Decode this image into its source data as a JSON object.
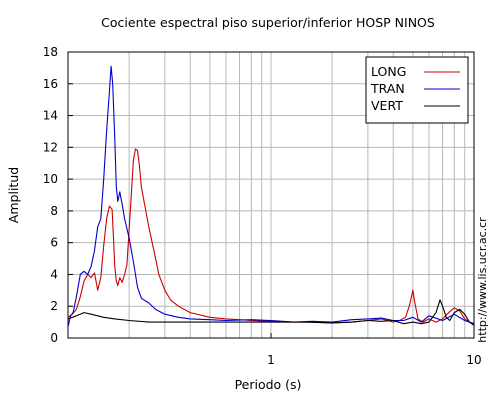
{
  "chart_data": {
    "type": "line",
    "title": "Cociente espectral piso superior/inferior  HOSP NINOS",
    "xlabel": "Periodo (s)",
    "ylabel": "Amplitud",
    "watermark": "http://www.lis.ucr.ac.cr",
    "x_scale": "log",
    "xlim": [
      0.1,
      10
    ],
    "ylim": [
      0,
      18
    ],
    "xticks": [
      1,
      10
    ],
    "yticks": [
      0,
      2,
      4,
      6,
      8,
      10,
      12,
      14,
      16,
      18
    ],
    "grid": true,
    "legend_position": "top-right",
    "series": [
      {
        "name": "LONG",
        "color": "#cc0000",
        "x": [
          0.1,
          0.105,
          0.11,
          0.115,
          0.12,
          0.125,
          0.13,
          0.135,
          0.14,
          0.145,
          0.15,
          0.155,
          0.16,
          0.165,
          0.168,
          0.17,
          0.173,
          0.176,
          0.18,
          0.185,
          0.19,
          0.195,
          0.2,
          0.205,
          0.21,
          0.215,
          0.22,
          0.225,
          0.23,
          0.24,
          0.25,
          0.26,
          0.27,
          0.28,
          0.3,
          0.32,
          0.35,
          0.4,
          0.5,
          0.6,
          0.7,
          0.8,
          1.0,
          1.2,
          1.5,
          2.0,
          2.5,
          3.0,
          3.5,
          4.0,
          4.3,
          4.6,
          4.8,
          5.0,
          5.1,
          5.3,
          5.6,
          6.0,
          6.5,
          7.0,
          7.5,
          8.0,
          8.5,
          9.0,
          9.5,
          10.0
        ],
        "y": [
          1.3,
          1.5,
          1.8,
          2.6,
          3.6,
          4.0,
          3.8,
          4.1,
          3.0,
          3.8,
          5.8,
          7.5,
          8.3,
          8.1,
          6.0,
          4.5,
          3.6,
          3.3,
          3.8,
          3.5,
          4.0,
          4.6,
          6.8,
          9.0,
          11.2,
          11.9,
          11.8,
          10.8,
          9.5,
          8.2,
          7.0,
          6.0,
          5.0,
          4.0,
          3.0,
          2.4,
          2.0,
          1.6,
          1.3,
          1.2,
          1.15,
          1.1,
          1.05,
          1.0,
          1.0,
          0.95,
          1.0,
          1.1,
          1.2,
          1.0,
          1.1,
          1.3,
          2.0,
          3.0,
          2.3,
          1.2,
          1.0,
          1.2,
          1.0,
          1.2,
          1.6,
          1.9,
          1.7,
          1.2,
          1.0,
          0.8
        ]
      },
      {
        "name": "TRAN",
        "color": "#0000cc",
        "x": [
          0.1,
          0.103,
          0.106,
          0.11,
          0.115,
          0.12,
          0.125,
          0.13,
          0.135,
          0.14,
          0.145,
          0.15,
          0.155,
          0.16,
          0.163,
          0.166,
          0.17,
          0.173,
          0.176,
          0.18,
          0.185,
          0.19,
          0.2,
          0.21,
          0.22,
          0.23,
          0.25,
          0.27,
          0.3,
          0.35,
          0.4,
          0.5,
          0.6,
          0.8,
          1.0,
          1.3,
          1.6,
          2.0,
          2.5,
          3.0,
          3.5,
          4.0,
          4.5,
          5.0,
          5.5,
          6.0,
          7.0,
          8.0,
          9.0,
          10.0
        ],
        "y": [
          0.7,
          1.4,
          1.6,
          2.6,
          4.0,
          4.2,
          4.0,
          4.5,
          5.5,
          7.0,
          7.5,
          10.0,
          13.0,
          15.5,
          17.1,
          16.0,
          12.5,
          9.5,
          8.6,
          9.2,
          8.4,
          7.5,
          6.3,
          4.8,
          3.2,
          2.5,
          2.2,
          1.8,
          1.5,
          1.3,
          1.2,
          1.15,
          1.1,
          1.15,
          1.1,
          1.0,
          1.05,
          1.0,
          1.15,
          1.2,
          1.25,
          1.1,
          1.1,
          1.3,
          1.0,
          1.4,
          1.1,
          1.5,
          1.1,
          0.9
        ]
      },
      {
        "name": "VERT",
        "color": "#000000",
        "x": [
          0.1,
          0.11,
          0.12,
          0.13,
          0.14,
          0.15,
          0.17,
          0.2,
          0.25,
          0.3,
          0.4,
          0.5,
          0.7,
          1.0,
          1.5,
          2.0,
          2.5,
          3.0,
          3.5,
          4.0,
          4.5,
          5.0,
          5.5,
          6.0,
          6.5,
          6.8,
          7.0,
          7.3,
          7.6,
          8.0,
          8.5,
          9.0,
          9.5,
          10.0
        ],
        "y": [
          1.2,
          1.4,
          1.6,
          1.5,
          1.4,
          1.3,
          1.2,
          1.1,
          1.0,
          1.0,
          1.0,
          1.0,
          1.0,
          1.0,
          1.0,
          0.95,
          1.0,
          1.1,
          1.05,
          1.1,
          0.9,
          1.0,
          0.9,
          1.0,
          1.6,
          2.4,
          2.0,
          1.3,
          1.1,
          1.6,
          1.8,
          1.5,
          1.0,
          0.8
        ]
      }
    ]
  }
}
